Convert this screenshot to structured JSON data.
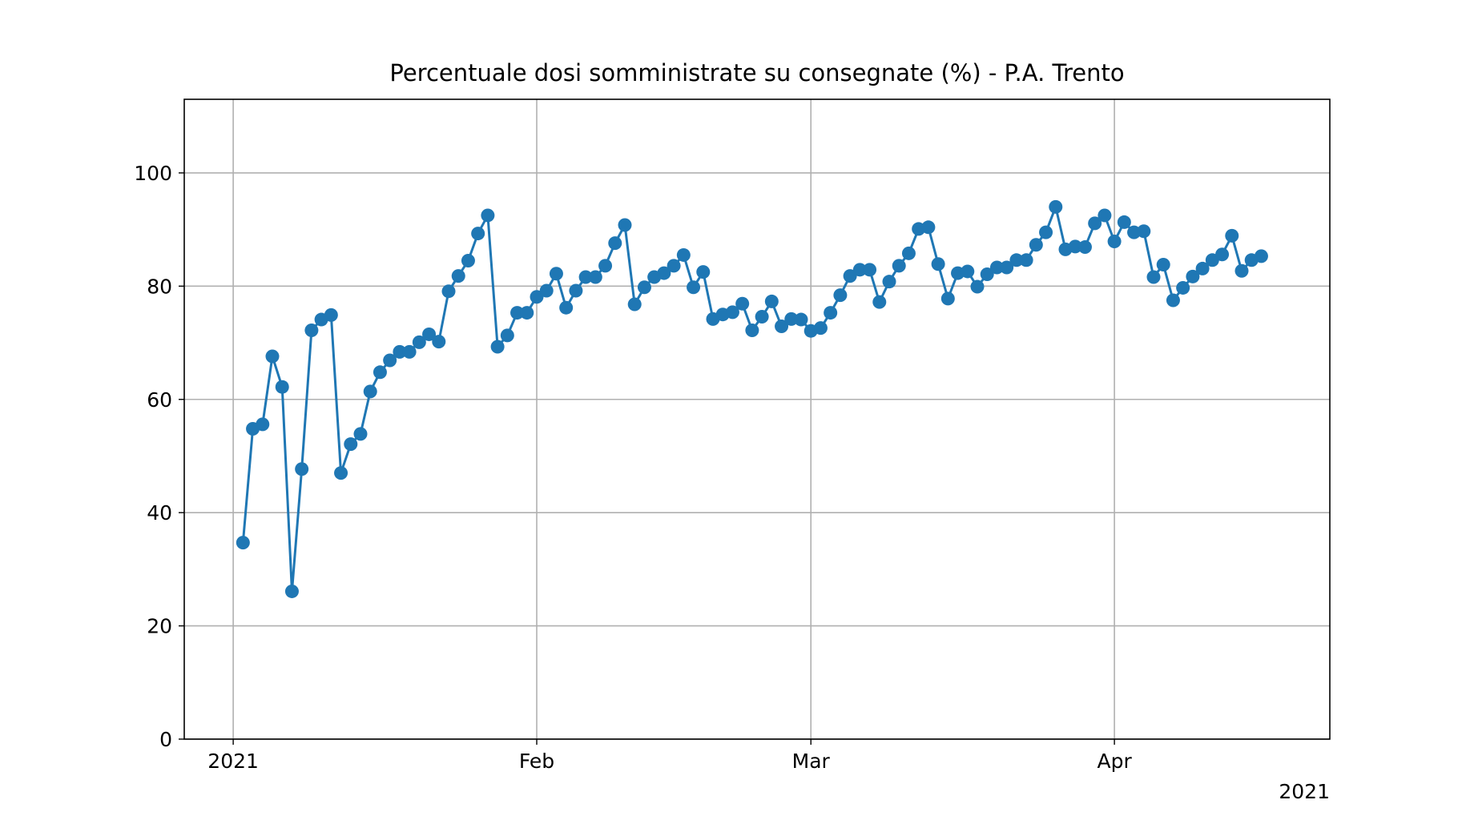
{
  "chart_data": {
    "type": "line",
    "title": "Percentuale dosi somministrate su consegnate (%) - P.A. Trento",
    "xlabel": "",
    "ylabel": "",
    "ylim": [
      0,
      113
    ],
    "xlim": [
      "2020-12-27",
      "2021-04-23"
    ],
    "grid": true,
    "legend": "none",
    "color": "#1f77b4",
    "x_ticks": [
      {
        "date": "2021-01-01",
        "label": "2021"
      },
      {
        "date": "2021-02-01",
        "label": "Feb"
      },
      {
        "date": "2021-03-01",
        "label": "Mar"
      },
      {
        "date": "2021-04-01",
        "label": "Apr"
      }
    ],
    "x_offset_label": "2021",
    "y_ticks": [
      0,
      20,
      40,
      60,
      80,
      100
    ],
    "series": [
      {
        "x": [
          "2021-01-02",
          "2021-01-03",
          "2021-01-04",
          "2021-01-05",
          "2021-01-06",
          "2021-01-07",
          "2021-01-08",
          "2021-01-09",
          "2021-01-10",
          "2021-01-11",
          "2021-01-12",
          "2021-01-13",
          "2021-01-14",
          "2021-01-15",
          "2021-01-16",
          "2021-01-17",
          "2021-01-18",
          "2021-01-19",
          "2021-01-20",
          "2021-01-21",
          "2021-01-22",
          "2021-01-23",
          "2021-01-24",
          "2021-01-25",
          "2021-01-26",
          "2021-01-27",
          "2021-01-28",
          "2021-01-29",
          "2021-01-30",
          "2021-01-31",
          "2021-02-01",
          "2021-02-02",
          "2021-02-03",
          "2021-02-04",
          "2021-02-05",
          "2021-02-06",
          "2021-02-07",
          "2021-02-08",
          "2021-02-09",
          "2021-02-10",
          "2021-02-11",
          "2021-02-12",
          "2021-02-13",
          "2021-02-14",
          "2021-02-15",
          "2021-02-16",
          "2021-02-17",
          "2021-02-18",
          "2021-02-19",
          "2021-02-20",
          "2021-02-21",
          "2021-02-22",
          "2021-02-23",
          "2021-02-24",
          "2021-02-25",
          "2021-02-26",
          "2021-02-27",
          "2021-02-28",
          "2021-03-01",
          "2021-03-02",
          "2021-03-03",
          "2021-03-04",
          "2021-03-05",
          "2021-03-06",
          "2021-03-07",
          "2021-03-08",
          "2021-03-09",
          "2021-03-10",
          "2021-03-11",
          "2021-03-12",
          "2021-03-13",
          "2021-03-14",
          "2021-03-15",
          "2021-03-16",
          "2021-03-17",
          "2021-03-18",
          "2021-03-19",
          "2021-03-20",
          "2021-03-21",
          "2021-03-22",
          "2021-03-23",
          "2021-03-24",
          "2021-03-25",
          "2021-03-26",
          "2021-03-27",
          "2021-03-28",
          "2021-03-29",
          "2021-03-30",
          "2021-03-31",
          "2021-04-01",
          "2021-04-02",
          "2021-04-03",
          "2021-04-04",
          "2021-04-05",
          "2021-04-06",
          "2021-04-07",
          "2021-04-08",
          "2021-04-09",
          "2021-04-10",
          "2021-04-11",
          "2021-04-12",
          "2021-04-13",
          "2021-04-14",
          "2021-04-15",
          "2021-04-16"
        ],
        "values": [
          34.7,
          54.8,
          55.6,
          67.6,
          62.2,
          26.1,
          47.7,
          72.2,
          74.1,
          74.9,
          47.0,
          52.1,
          53.9,
          61.4,
          64.8,
          66.9,
          68.4,
          68.4,
          70.1,
          71.5,
          70.2,
          79.1,
          81.8,
          84.5,
          89.3,
          92.5,
          69.3,
          71.3,
          75.3,
          75.3,
          78.1,
          79.2,
          82.2,
          76.2,
          79.2,
          81.6,
          81.6,
          83.6,
          87.6,
          90.8,
          76.8,
          79.8,
          81.6,
          82.3,
          83.6,
          85.5,
          79.8,
          82.5,
          74.2,
          75.0,
          75.4,
          76.9,
          72.2,
          74.6,
          77.3,
          72.9,
          74.2,
          74.1,
          72.1,
          72.6,
          75.3,
          78.4,
          81.8,
          82.9,
          82.9,
          77.2,
          80.8,
          83.6,
          85.8,
          90.1,
          90.4,
          83.9,
          77.8,
          82.3,
          82.6,
          79.9,
          82.1,
          83.3,
          83.3,
          84.6,
          84.6,
          87.3,
          89.5,
          94.0,
          86.5,
          87.0,
          86.9,
          91.1,
          92.5,
          87.9,
          91.3,
          89.5,
          89.7,
          81.6,
          83.8,
          77.5,
          79.7,
          81.7,
          83.1,
          84.6,
          85.6,
          88.9,
          82.7,
          84.6,
          85.3
        ]
      }
    ]
  }
}
